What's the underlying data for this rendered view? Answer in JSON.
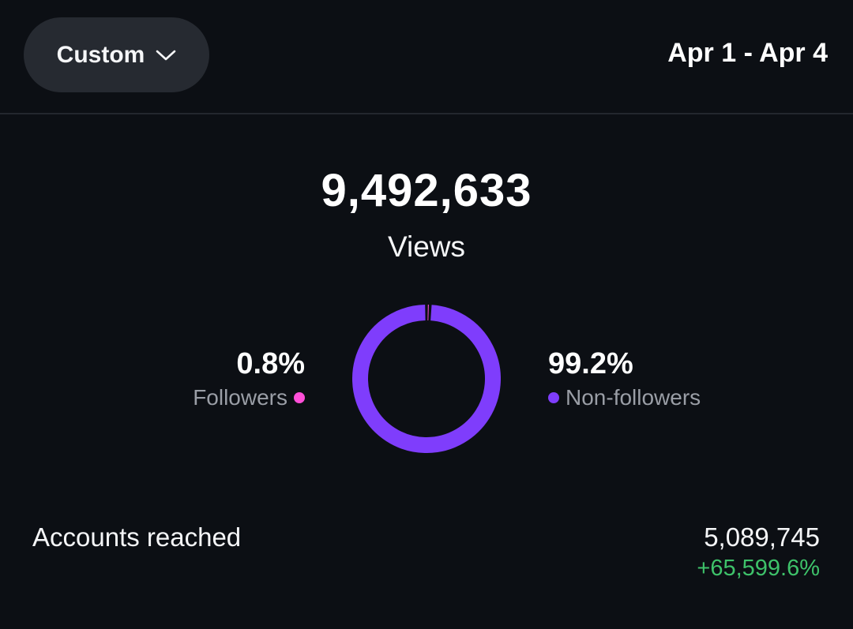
{
  "header": {
    "range_selector": "Custom",
    "date_range": "Apr 1 - Apr 4"
  },
  "views": {
    "total": "9,492,633",
    "label": "Views"
  },
  "audience": {
    "followers": {
      "percent": "0.8%",
      "label": "Followers",
      "color": "#ff4fd8"
    },
    "non_followers": {
      "percent": "99.2%",
      "label": "Non-followers",
      "color": "#7f3dfc"
    }
  },
  "chart_data": {
    "type": "pie",
    "categories": [
      "Followers",
      "Non-followers"
    ],
    "values": [
      0.8,
      99.2
    ],
    "colors": [
      "#ff4fd8",
      "#7f3dfc"
    ]
  },
  "accounts_reached": {
    "label": "Accounts reached",
    "value": "5,089,745",
    "change": "+65,599.6%",
    "change_color": "#3ec26a"
  },
  "icons": {
    "range_selector": "chevron-down-icon"
  }
}
